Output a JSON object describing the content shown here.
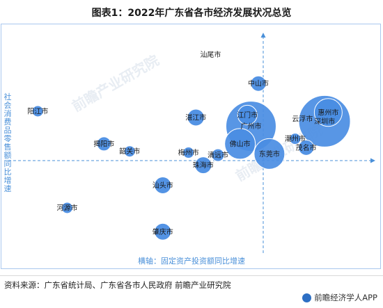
{
  "title": "图表1：2022年广东省各市经济发展状况总览",
  "watermark": "前瞻产业研究院",
  "source": "资料来源：广东省统计局、广东省各市人民政府 前瞻产业研究院",
  "brand": "前瞻经济学人APP",
  "colors": {
    "bubble": "#4a8de3",
    "bubble_light": "#5b9be8",
    "axis": "#4a90d9",
    "border": "#a9c7ee"
  },
  "chart_data": {
    "type": "scatter",
    "title": "图表1：2022年广东省各市经济发展状况总览",
    "xlabel": "横轴：固定资产投资额同比增速",
    "ylabel": "社会消费品零售额同比增速",
    "points": [
      {
        "name": "汕尾市",
        "x": 0.55,
        "y": 0.83,
        "r": 0
      },
      {
        "name": "中山市",
        "x": 0.68,
        "y": 0.6,
        "r": 11
      },
      {
        "name": "阳江市",
        "x": 0.08,
        "y": 0.38,
        "r": 8
      },
      {
        "name": "江门市",
        "x": 0.65,
        "y": 0.35,
        "r": 14
      },
      {
        "name": "惠州市",
        "x": 0.87,
        "y": 0.37,
        "r": 20
      },
      {
        "name": "湛江市",
        "x": 0.51,
        "y": 0.33,
        "r": 12
      },
      {
        "name": "广州市",
        "x": 0.66,
        "y": 0.26,
        "r": 36
      },
      {
        "name": "云浮市",
        "x": 0.8,
        "y": 0.32,
        "r": 0
      },
      {
        "name": "深圳市",
        "x": 0.86,
        "y": 0.3,
        "r": 37
      },
      {
        "name": "佛山市",
        "x": 0.63,
        "y": 0.12,
        "r": 22
      },
      {
        "name": "潮州市",
        "x": 0.78,
        "y": 0.16,
        "r": 8
      },
      {
        "name": "揭阳市",
        "x": 0.26,
        "y": 0.12,
        "r": 10
      },
      {
        "name": "茂名市",
        "x": 0.81,
        "y": 0.09,
        "r": 11
      },
      {
        "name": "韶关市",
        "x": 0.33,
        "y": 0.06,
        "r": 8
      },
      {
        "name": "梅州市",
        "x": 0.49,
        "y": 0.05,
        "r": 8
      },
      {
        "name": "清远市",
        "x": 0.57,
        "y": 0.03,
        "r": 9
      },
      {
        "name": "东莞市",
        "x": 0.71,
        "y": 0.04,
        "r": 22
      },
      {
        "name": "珠海市",
        "x": 0.53,
        "y": -0.05,
        "r": 12
      },
      {
        "name": "汕头市",
        "x": 0.42,
        "y": -0.21,
        "r": 12
      },
      {
        "name": "河源市",
        "x": 0.16,
        "y": -0.39,
        "r": 8
      },
      {
        "name": "肇庆市",
        "x": 0.42,
        "y": -0.58,
        "r": 12
      }
    ],
    "xlim": [
      0,
      1
    ],
    "ylim": [
      -0.75,
      1
    ]
  }
}
